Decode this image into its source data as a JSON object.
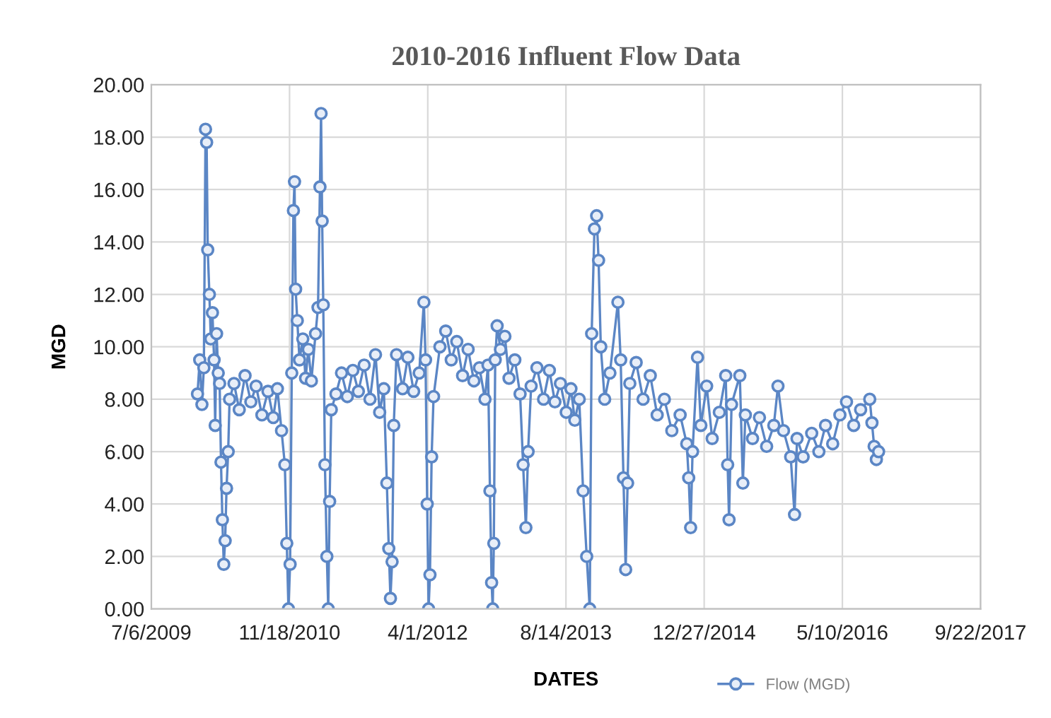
{
  "chart_data": {
    "type": "line",
    "title": "2010-2016 Influent Flow Data",
    "xlabel": "DATES",
    "ylabel": "MGD",
    "xlim": [
      "2009-07-06",
      "2017-09-22"
    ],
    "xticks": [
      {
        "value": "2009-07-06",
        "label": "7/6/2009"
      },
      {
        "value": "2010-11-18",
        "label": "11/18/2010"
      },
      {
        "value": "2012-04-01",
        "label": "4/1/2012"
      },
      {
        "value": "2013-08-14",
        "label": "8/14/2013"
      },
      {
        "value": "2014-12-27",
        "label": "12/27/2014"
      },
      {
        "value": "2016-05-10",
        "label": "5/10/2016"
      },
      {
        "value": "2017-09-22",
        "label": "9/22/2017"
      }
    ],
    "ylim": [
      0,
      20
    ],
    "yticks": [
      {
        "value": 0,
        "label": "0.00"
      },
      {
        "value": 2,
        "label": "2.00"
      },
      {
        "value": 4,
        "label": "4.00"
      },
      {
        "value": 6,
        "label": "6.00"
      },
      {
        "value": 8,
        "label": "8.00"
      },
      {
        "value": 10,
        "label": "10.00"
      },
      {
        "value": 12,
        "label": "12.00"
      },
      {
        "value": 14,
        "label": "14.00"
      },
      {
        "value": 16,
        "label": "16.00"
      },
      {
        "value": 18,
        "label": "18.00"
      },
      {
        "value": 20,
        "label": "20.00"
      }
    ],
    "grid": true,
    "legend": "bottom right",
    "marker": "circle",
    "line_style": "solid",
    "series": [
      {
        "name": "Flow (MGD)",
        "color": "#5b86c5",
        "x": [
          "2009-12-20",
          "2009-12-28",
          "2010-01-05",
          "2010-01-12",
          "2010-01-18",
          "2010-01-22",
          "2010-01-26",
          "2010-02-01",
          "2010-02-06",
          "2010-02-12",
          "2010-02-18",
          "2010-02-22",
          "2010-02-27",
          "2010-03-05",
          "2010-03-10",
          "2010-03-15",
          "2010-03-20",
          "2010-03-25",
          "2010-03-30",
          "2010-04-04",
          "2010-04-10",
          "2010-04-15",
          "2010-05-01",
          "2010-05-20",
          "2010-06-10",
          "2010-07-01",
          "2010-07-20",
          "2010-08-10",
          "2010-09-01",
          "2010-09-20",
          "2010-10-05",
          "2010-10-20",
          "2010-11-01",
          "2010-11-08",
          "2010-11-14",
          "2010-11-20",
          "2010-11-26",
          "2010-12-02",
          "2010-12-06",
          "2010-12-10",
          "2010-12-16",
          "2010-12-24",
          "2011-01-05",
          "2011-01-15",
          "2011-01-25",
          "2011-02-05",
          "2011-02-20",
          "2011-03-01",
          "2011-03-08",
          "2011-03-12",
          "2011-03-16",
          "2011-03-20",
          "2011-03-26",
          "2011-04-02",
          "2011-04-07",
          "2011-04-12",
          "2011-04-18",
          "2011-05-05",
          "2011-05-25",
          "2011-06-15",
          "2011-07-05",
          "2011-07-25",
          "2011-08-15",
          "2011-09-05",
          "2011-09-25",
          "2011-10-10",
          "2011-10-25",
          "2011-11-05",
          "2011-11-12",
          "2011-11-18",
          "2011-11-24",
          "2011-11-30",
          "2011-12-10",
          "2012-01-01",
          "2012-01-20",
          "2012-02-10",
          "2012-03-01",
          "2012-03-18",
          "2012-03-24",
          "2012-03-30",
          "2012-04-04",
          "2012-04-09",
          "2012-04-15",
          "2012-04-22",
          "2012-05-15",
          "2012-06-05",
          "2012-06-25",
          "2012-07-15",
          "2012-08-05",
          "2012-08-25",
          "2012-09-15",
          "2012-10-05",
          "2012-10-25",
          "2012-11-05",
          "2012-11-12",
          "2012-11-18",
          "2012-11-22",
          "2012-11-26",
          "2012-12-01",
          "2012-12-08",
          "2012-12-20",
          "2013-01-05",
          "2013-01-20",
          "2013-02-10",
          "2013-03-01",
          "2013-03-12",
          "2013-03-22",
          "2013-03-30",
          "2013-04-10",
          "2013-05-01",
          "2013-05-25",
          "2013-06-15",
          "2013-07-05",
          "2013-07-25",
          "2013-08-15",
          "2013-09-01",
          "2013-09-15",
          "2013-10-01",
          "2013-10-15",
          "2013-10-28",
          "2013-11-08",
          "2013-11-15",
          "2013-11-25",
          "2013-12-03",
          "2013-12-10",
          "2013-12-18",
          "2014-01-01",
          "2014-01-20",
          "2014-02-18",
          "2014-02-28",
          "2014-03-10",
          "2014-03-18",
          "2014-03-25",
          "2014-04-02",
          "2014-04-25",
          "2014-05-20",
          "2014-06-15",
          "2014-07-10",
          "2014-08-05",
          "2014-09-01",
          "2014-10-01",
          "2014-10-25",
          "2014-11-01",
          "2014-11-08",
          "2014-11-15",
          "2014-12-03",
          "2014-12-15",
          "2015-01-05",
          "2015-01-25",
          "2015-02-20",
          "2015-03-15",
          "2015-03-22",
          "2015-03-27",
          "2015-04-05",
          "2015-05-05",
          "2015-05-16",
          "2015-05-25",
          "2015-06-20",
          "2015-07-15",
          "2015-08-10",
          "2015-09-05",
          "2015-09-20",
          "2015-10-10",
          "2015-11-05",
          "2015-11-19",
          "2015-11-28",
          "2015-12-20",
          "2016-01-20",
          "2016-02-15",
          "2016-03-10",
          "2016-04-05",
          "2016-05-01",
          "2016-05-25",
          "2016-06-20",
          "2016-07-15",
          "2016-08-17",
          "2016-08-25",
          "2016-09-02",
          "2016-09-10",
          "2016-09-18"
        ],
        "values": [
          8.2,
          9.5,
          7.8,
          9.2,
          18.3,
          17.8,
          13.7,
          12.0,
          10.3,
          11.3,
          9.5,
          7.0,
          10.5,
          9.0,
          8.6,
          5.6,
          3.4,
          1.7,
          2.6,
          4.6,
          6.0,
          8.0,
          8.6,
          7.6,
          8.9,
          7.9,
          8.5,
          7.4,
          8.3,
          7.3,
          8.4,
          6.8,
          5.5,
          2.5,
          0.0,
          1.7,
          9.0,
          15.2,
          16.3,
          12.2,
          11.0,
          9.5,
          10.3,
          8.8,
          9.9,
          8.7,
          10.5,
          11.5,
          16.1,
          18.9,
          14.8,
          11.6,
          5.5,
          2.0,
          0.0,
          4.1,
          7.6,
          8.2,
          9.0,
          8.1,
          9.1,
          8.3,
          9.3,
          8.0,
          9.7,
          7.5,
          8.4,
          4.8,
          2.3,
          0.4,
          1.8,
          7.0,
          9.7,
          8.4,
          9.6,
          8.3,
          9.0,
          11.7,
          9.5,
          4.0,
          0.0,
          1.3,
          5.8,
          8.1,
          10.0,
          10.6,
          9.5,
          10.2,
          8.9,
          9.9,
          8.7,
          9.2,
          8.0,
          9.3,
          4.5,
          1.0,
          0.0,
          2.5,
          9.5,
          10.8,
          9.9,
          10.4,
          8.8,
          9.5,
          8.2,
          5.5,
          3.1,
          6.0,
          8.5,
          9.2,
          8.0,
          9.1,
          7.9,
          8.6,
          7.5,
          8.4,
          7.2,
          8.0,
          4.5,
          2.0,
          0.0,
          10.5,
          14.5,
          15.0,
          13.3,
          10.0,
          8.0,
          9.0,
          11.7,
          9.5,
          5.0,
          1.5,
          4.8,
          8.6,
          9.4,
          8.0,
          8.9,
          7.4,
          8.0,
          6.8,
          7.4,
          6.3,
          5.0,
          3.1,
          6.0,
          9.6,
          7.0,
          8.5,
          6.5,
          7.5,
          8.9,
          5.5,
          3.4,
          7.8,
          8.9,
          4.8,
          7.4,
          6.5,
          7.3,
          6.2,
          7.0,
          8.5,
          6.8,
          5.8,
          3.6,
          6.5,
          5.8,
          6.7,
          6.0,
          7.0,
          6.3,
          7.4,
          7.9,
          7.0,
          7.6,
          8.0,
          7.1,
          6.2,
          5.7,
          6.0
        ]
      }
    ]
  }
}
